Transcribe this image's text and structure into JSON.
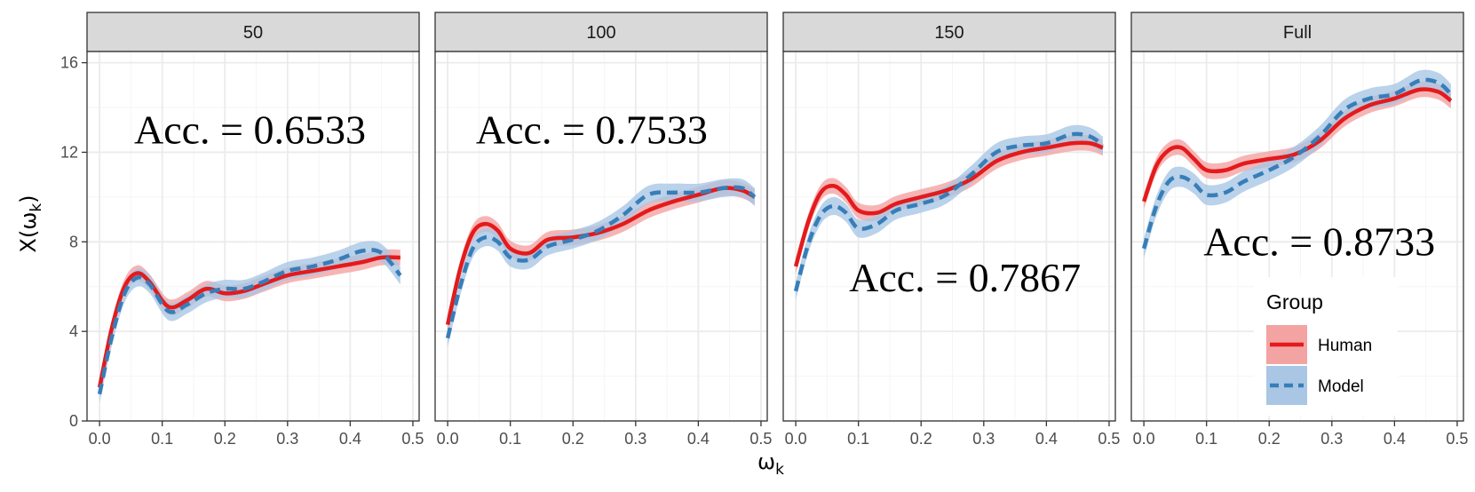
{
  "chart_data": {
    "type": "line",
    "facets": [
      "50",
      "100",
      "150",
      "Full"
    ],
    "xlabel": "ω",
    "xlabel_sub": "k",
    "ylabel_main": "X(ω",
    "ylabel_sub": "k",
    "ylabel_close": ")",
    "xlim": [
      -0.02,
      0.51
    ],
    "ylim": [
      0,
      16.5
    ],
    "x_ticks": [
      0.0,
      0.1,
      0.2,
      0.3,
      0.4,
      0.5
    ],
    "x_tick_labels": [
      "0.0",
      "0.1",
      "0.2",
      "0.3",
      "0.4",
      "0.5"
    ],
    "y_ticks": [
      0,
      4,
      8,
      12,
      16
    ],
    "y_tick_labels": [
      "0",
      "4",
      "8",
      "12",
      "16"
    ],
    "grid": true,
    "legend": {
      "title": "Group",
      "placement": "bottom-right of last panel",
      "entries": [
        "Human",
        "Model"
      ]
    },
    "colors": {
      "Human_line": "#e41a1c",
      "Human_band": "#f4a3a3",
      "Model_line": "#377eb8",
      "Model_band": "#a9c7e5",
      "strip_bg": "#d9d9d9",
      "grid_major": "#ebebeb",
      "grid_minor": "#f5f5f5"
    },
    "annotations": [
      {
        "facet": "50",
        "text": "Acc. = 0.6533",
        "x": 0.24,
        "y": 12.4
      },
      {
        "facet": "100",
        "text": "Acc. = 0.7533",
        "x": 0.23,
        "y": 12.4
      },
      {
        "facet": "150",
        "text": "Acc. = 0.7867",
        "x": 0.27,
        "y": 5.8
      },
      {
        "facet": "Full",
        "text": "Acc. = 0.8733",
        "x": 0.28,
        "y": 7.4
      }
    ],
    "series": [
      {
        "facet": "50",
        "name": "Human",
        "x": [
          0.0,
          0.02,
          0.04,
          0.06,
          0.08,
          0.11,
          0.14,
          0.17,
          0.2,
          0.23,
          0.26,
          0.3,
          0.34,
          0.38,
          0.42,
          0.45,
          0.48
        ],
        "y": [
          1.5,
          4.2,
          6.0,
          6.6,
          6.2,
          5.1,
          5.4,
          5.9,
          5.7,
          5.8,
          6.1,
          6.5,
          6.7,
          6.9,
          7.1,
          7.3,
          7.3
        ],
        "band": 0.35
      },
      {
        "facet": "50",
        "name": "Model",
        "x": [
          0.0,
          0.02,
          0.04,
          0.06,
          0.08,
          0.11,
          0.14,
          0.17,
          0.2,
          0.23,
          0.26,
          0.3,
          0.34,
          0.38,
          0.42,
          0.45,
          0.48
        ],
        "y": [
          1.2,
          3.8,
          5.7,
          6.4,
          6.1,
          4.9,
          5.2,
          5.7,
          5.9,
          5.9,
          6.2,
          6.7,
          6.9,
          7.2,
          7.6,
          7.5,
          6.5
        ],
        "band": 0.4
      },
      {
        "facet": "100",
        "name": "Human",
        "x": [
          0.0,
          0.02,
          0.04,
          0.06,
          0.08,
          0.1,
          0.13,
          0.16,
          0.2,
          0.24,
          0.28,
          0.32,
          0.36,
          0.4,
          0.44,
          0.47,
          0.49
        ],
        "y": [
          4.3,
          6.8,
          8.4,
          8.8,
          8.5,
          7.7,
          7.5,
          8.1,
          8.2,
          8.4,
          8.8,
          9.4,
          9.8,
          10.1,
          10.4,
          10.3,
          10.0
        ],
        "band": 0.35
      },
      {
        "facet": "100",
        "name": "Model",
        "x": [
          0.0,
          0.02,
          0.04,
          0.06,
          0.08,
          0.1,
          0.13,
          0.16,
          0.2,
          0.24,
          0.28,
          0.32,
          0.36,
          0.4,
          0.44,
          0.47,
          0.49
        ],
        "y": [
          3.7,
          6.0,
          7.7,
          8.2,
          8.0,
          7.3,
          7.2,
          7.8,
          8.1,
          8.5,
          9.2,
          10.1,
          10.2,
          10.2,
          10.4,
          10.4,
          10.0
        ],
        "band": 0.4
      },
      {
        "facet": "150",
        "name": "Human",
        "x": [
          0.0,
          0.02,
          0.04,
          0.06,
          0.08,
          0.1,
          0.13,
          0.16,
          0.2,
          0.24,
          0.28,
          0.32,
          0.36,
          0.4,
          0.44,
          0.47,
          0.49
        ],
        "y": [
          6.9,
          8.9,
          10.2,
          10.5,
          10.1,
          9.4,
          9.3,
          9.7,
          10.0,
          10.3,
          10.8,
          11.6,
          12.0,
          12.2,
          12.4,
          12.4,
          12.2
        ],
        "band": 0.35
      },
      {
        "facet": "150",
        "name": "Model",
        "x": [
          0.0,
          0.02,
          0.04,
          0.06,
          0.08,
          0.1,
          0.13,
          0.16,
          0.2,
          0.24,
          0.28,
          0.32,
          0.36,
          0.4,
          0.44,
          0.47,
          0.49
        ],
        "y": [
          5.8,
          7.9,
          9.2,
          9.6,
          9.3,
          8.6,
          8.8,
          9.4,
          9.7,
          10.1,
          11.0,
          12.0,
          12.3,
          12.4,
          12.8,
          12.7,
          12.3
        ],
        "band": 0.4
      },
      {
        "facet": "Full",
        "name": "Human",
        "x": [
          0.0,
          0.02,
          0.04,
          0.06,
          0.08,
          0.1,
          0.13,
          0.16,
          0.2,
          0.24,
          0.28,
          0.32,
          0.36,
          0.4,
          0.44,
          0.47,
          0.49
        ],
        "y": [
          9.8,
          11.4,
          12.1,
          12.2,
          11.7,
          11.2,
          11.2,
          11.5,
          11.7,
          11.9,
          12.5,
          13.5,
          14.1,
          14.4,
          14.8,
          14.7,
          14.3
        ],
        "band": 0.35
      },
      {
        "facet": "Full",
        "name": "Model",
        "x": [
          0.0,
          0.02,
          0.04,
          0.06,
          0.08,
          0.1,
          0.13,
          0.16,
          0.2,
          0.24,
          0.28,
          0.32,
          0.36,
          0.4,
          0.44,
          0.47,
          0.49
        ],
        "y": [
          7.7,
          9.6,
          10.7,
          10.9,
          10.6,
          10.1,
          10.2,
          10.7,
          11.2,
          11.8,
          12.7,
          13.9,
          14.4,
          14.6,
          15.2,
          15.1,
          14.6
        ],
        "band": 0.45
      }
    ]
  }
}
